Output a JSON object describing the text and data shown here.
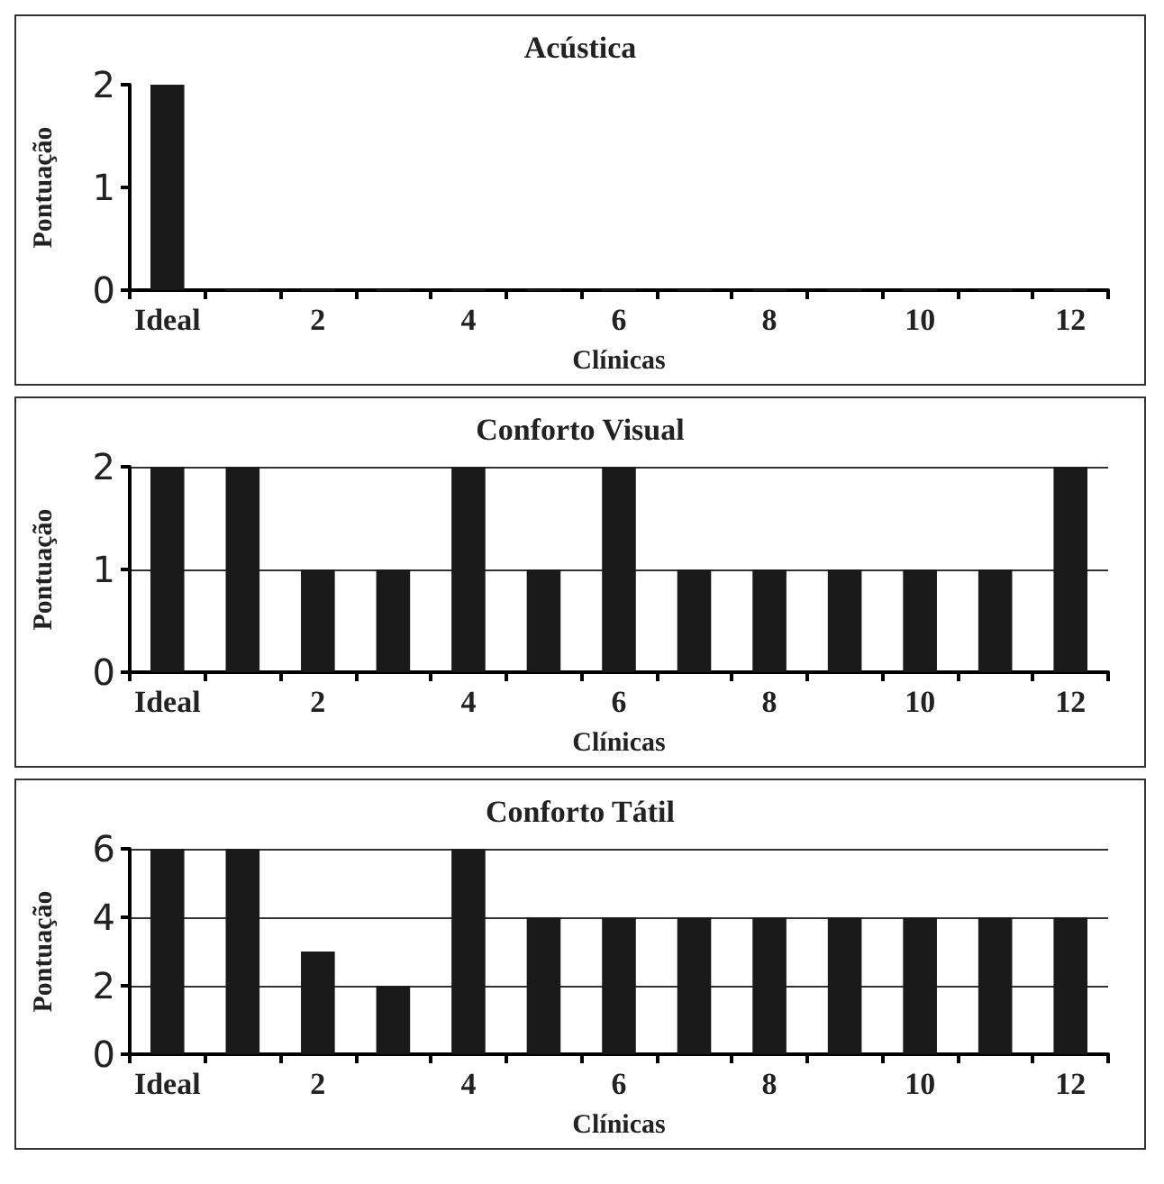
{
  "chart_data": [
    {
      "type": "bar",
      "title": "Acústica",
      "xlabel": "Clínicas",
      "ylabel": "Pontuação",
      "categories": [
        "Ideal",
        null,
        "2",
        null,
        "4",
        null,
        "6",
        null,
        "8",
        null,
        "10",
        null,
        "12"
      ],
      "values": [
        2,
        0,
        0,
        0,
        0,
        0,
        0,
        0,
        0,
        0,
        0,
        0,
        0
      ],
      "color": "#1a1a1a",
      "ylim": [
        0,
        2
      ],
      "yticks": [
        0,
        1,
        2
      ],
      "grid": false
    },
    {
      "type": "bar",
      "title": "Conforto Visual",
      "xlabel": "Clínicas",
      "ylabel": "Pontuação",
      "categories": [
        "Ideal",
        null,
        "2",
        null,
        "4",
        null,
        "6",
        null,
        "8",
        null,
        "10",
        null,
        "12"
      ],
      "values": [
        2,
        2,
        1,
        1,
        2,
        1,
        2,
        1,
        1,
        1,
        1,
        1,
        2
      ],
      "color": "#1a1a1a",
      "ylim": [
        0,
        2
      ],
      "yticks": [
        0,
        1,
        2
      ],
      "grid": "y"
    },
    {
      "type": "bar",
      "title": "Conforto Tátil",
      "xlabel": "Clínicas",
      "ylabel": "Pontuação",
      "categories": [
        "Ideal",
        null,
        "2",
        null,
        "4",
        null,
        "6",
        null,
        "8",
        null,
        "10",
        null,
        "12"
      ],
      "values": [
        6,
        6,
        3,
        2,
        6,
        4,
        4,
        4,
        4,
        4,
        4,
        4,
        4
      ],
      "color": "#1a1a1a",
      "ylim": [
        0,
        6
      ],
      "yticks": [
        0,
        2,
        4,
        6
      ],
      "grid": "y"
    }
  ]
}
